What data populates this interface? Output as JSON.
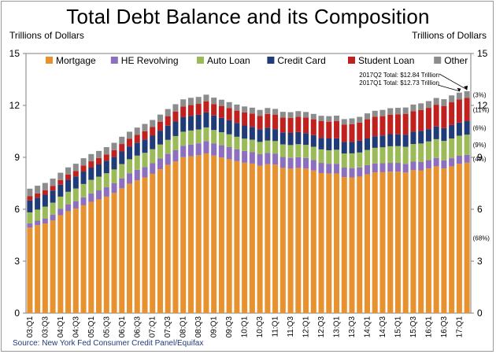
{
  "chart_data": {
    "type": "bar",
    "stacked": true,
    "title": "Total Debt Balance and its Composition",
    "ylabel_left": "Trillions of Dollars",
    "ylabel_right": "Trillions of Dollars",
    "source": "Source: New York Fed Consumer Credit Panel/Equifax",
    "ylim": [
      0,
      15
    ],
    "yticks": [
      "0",
      "3",
      "6",
      "9",
      "12",
      "15"
    ],
    "categories": [
      "03:Q1",
      "03:Q2",
      "03:Q3",
      "03:Q4",
      "04:Q1",
      "04:Q2",
      "04:Q3",
      "04:Q4",
      "05:Q1",
      "05:Q2",
      "05:Q3",
      "05:Q4",
      "06:Q1",
      "06:Q2",
      "06:Q3",
      "06:Q4",
      "07:Q1",
      "07:Q2",
      "07:Q3",
      "07:Q4",
      "08:Q1",
      "08:Q2",
      "08:Q3",
      "08:Q4",
      "09:Q1",
      "09:Q2",
      "09:Q3",
      "09:Q4",
      "10:Q1",
      "10:Q2",
      "10:Q3",
      "10:Q4",
      "11:Q1",
      "11:Q2",
      "11:Q3",
      "11:Q4",
      "12:Q1",
      "12:Q2",
      "12:Q3",
      "12:Q4",
      "13:Q1",
      "13:Q2",
      "13:Q3",
      "13:Q4",
      "14:Q1",
      "14:Q2",
      "14:Q3",
      "14:Q4",
      "15:Q1",
      "15:Q2",
      "15:Q3",
      "15:Q4",
      "16:Q1",
      "16:Q2",
      "16:Q3",
      "16:Q4",
      "17:Q1",
      "17:Q2"
    ],
    "xtick_labels": [
      "03:Q1",
      "03:Q3",
      "04:Q1",
      "04:Q3",
      "05:Q1",
      "05:Q3",
      "06:Q1",
      "06:Q3",
      "07:Q1",
      "07:Q3",
      "08:Q1",
      "08:Q3",
      "09:Q1",
      "09:Q3",
      "10:Q1",
      "10:Q3",
      "11:Q1",
      "11:Q3",
      "12:Q1",
      "12:Q3",
      "13:Q1",
      "13:Q3",
      "14:Q1",
      "14:Q3",
      "15:Q1",
      "15:Q3",
      "16:Q1",
      "16:Q3",
      "17:Q1"
    ],
    "series": [
      {
        "name": "Mortgage",
        "color": "#e8912f",
        "values": [
          4.94,
          5.08,
          5.18,
          5.35,
          5.66,
          5.89,
          6.04,
          6.23,
          6.42,
          6.57,
          6.73,
          6.94,
          7.21,
          7.48,
          7.68,
          7.84,
          8.05,
          8.31,
          8.57,
          8.76,
          9.01,
          9.06,
          9.12,
          9.23,
          9.1,
          8.99,
          8.89,
          8.78,
          8.69,
          8.64,
          8.52,
          8.6,
          8.58,
          8.39,
          8.35,
          8.39,
          8.35,
          8.24,
          8.09,
          8.06,
          8.07,
          7.86,
          7.84,
          7.89,
          8.02,
          8.13,
          8.14,
          8.17,
          8.17,
          8.12,
          8.26,
          8.25,
          8.36,
          8.48,
          8.36,
          8.48,
          8.63,
          8.69
        ]
      },
      {
        "name": "HE Revolving",
        "color": "#8c6fbe",
        "values": [
          0.24,
          0.26,
          0.29,
          0.33,
          0.37,
          0.4,
          0.43,
          0.46,
          0.5,
          0.52,
          0.54,
          0.56,
          0.58,
          0.59,
          0.6,
          0.6,
          0.61,
          0.62,
          0.63,
          0.65,
          0.66,
          0.68,
          0.69,
          0.71,
          0.71,
          0.71,
          0.7,
          0.69,
          0.68,
          0.67,
          0.66,
          0.66,
          0.64,
          0.63,
          0.62,
          0.62,
          0.61,
          0.6,
          0.59,
          0.57,
          0.56,
          0.55,
          0.54,
          0.53,
          0.53,
          0.52,
          0.52,
          0.51,
          0.51,
          0.5,
          0.49,
          0.49,
          0.49,
          0.48,
          0.47,
          0.47,
          0.46,
          0.45
        ]
      },
      {
        "name": "Auto Loan",
        "color": "#9bbb59",
        "values": [
          0.64,
          0.64,
          0.68,
          0.7,
          0.7,
          0.72,
          0.73,
          0.77,
          0.78,
          0.79,
          0.81,
          0.8,
          0.82,
          0.82,
          0.82,
          0.82,
          0.81,
          0.81,
          0.81,
          0.82,
          0.81,
          0.81,
          0.8,
          0.79,
          0.77,
          0.75,
          0.74,
          0.72,
          0.71,
          0.71,
          0.71,
          0.71,
          0.72,
          0.73,
          0.74,
          0.75,
          0.76,
          0.77,
          0.78,
          0.78,
          0.81,
          0.81,
          0.85,
          0.86,
          0.88,
          0.9,
          0.92,
          0.96,
          0.97,
          0.99,
          1.02,
          1.06,
          1.07,
          1.09,
          1.12,
          1.14,
          1.16,
          1.17
        ]
      },
      {
        "name": "Credit Card",
        "color": "#1f3c78",
        "values": [
          0.69,
          0.69,
          0.69,
          0.7,
          0.69,
          0.7,
          0.7,
          0.72,
          0.71,
          0.71,
          0.72,
          0.73,
          0.73,
          0.74,
          0.75,
          0.77,
          0.78,
          0.8,
          0.82,
          0.84,
          0.84,
          0.85,
          0.85,
          0.87,
          0.84,
          0.83,
          0.81,
          0.8,
          0.76,
          0.74,
          0.73,
          0.73,
          0.69,
          0.69,
          0.7,
          0.7,
          0.68,
          0.67,
          0.67,
          0.68,
          0.66,
          0.67,
          0.66,
          0.68,
          0.66,
          0.67,
          0.68,
          0.7,
          0.68,
          0.7,
          0.71,
          0.73,
          0.71,
          0.73,
          0.74,
          0.78,
          0.76,
          0.78
        ]
      },
      {
        "name": "Student Loan",
        "color": "#c0201e",
        "values": [
          0.24,
          0.25,
          0.25,
          0.26,
          0.27,
          0.3,
          0.31,
          0.35,
          0.36,
          0.37,
          0.37,
          0.39,
          0.43,
          0.44,
          0.45,
          0.48,
          0.5,
          0.52,
          0.55,
          0.58,
          0.61,
          0.62,
          0.63,
          0.64,
          0.66,
          0.69,
          0.7,
          0.71,
          0.76,
          0.77,
          0.78,
          0.81,
          0.84,
          0.86,
          0.87,
          0.89,
          0.9,
          0.92,
          0.96,
          0.97,
          0.99,
          1.0,
          1.03,
          1.05,
          1.11,
          1.12,
          1.12,
          1.13,
          1.16,
          1.19,
          1.19,
          1.2,
          1.23,
          1.26,
          1.28,
          1.31,
          1.34,
          1.34
        ]
      },
      {
        "name": "Other",
        "color": "#8c8c8c",
        "values": [
          0.44,
          0.44,
          0.43,
          0.43,
          0.42,
          0.41,
          0.42,
          0.42,
          0.42,
          0.41,
          0.42,
          0.42,
          0.42,
          0.41,
          0.42,
          0.42,
          0.41,
          0.41,
          0.41,
          0.42,
          0.42,
          0.42,
          0.4,
          0.38,
          0.37,
          0.36,
          0.35,
          0.35,
          0.34,
          0.34,
          0.34,
          0.34,
          0.33,
          0.33,
          0.33,
          0.32,
          0.32,
          0.31,
          0.31,
          0.32,
          0.32,
          0.32,
          0.33,
          0.33,
          0.34,
          0.35,
          0.36,
          0.37,
          0.37,
          0.38,
          0.38,
          0.39,
          0.39,
          0.39,
          0.39,
          0.4,
          0.39,
          0.39
        ]
      }
    ],
    "right_labels": [
      {
        "text": "(3%)",
        "series": "Other"
      },
      {
        "text": "(11%)",
        "series": "Student Loan"
      },
      {
        "text": "(6%)",
        "series": "Credit Card"
      },
      {
        "text": "(9%)",
        "series": "Auto Loan"
      },
      {
        "text": "(4%)",
        "series": "HE Revolving"
      },
      {
        "text": "(68%)",
        "series": "Mortgage"
      }
    ],
    "annotations": [
      {
        "text": "2017Q2 Total: $12.84 Trillion"
      },
      {
        "text": "2017Q1 Total: $12.73 Trillion"
      }
    ],
    "legend_position": "top",
    "grid": false
  }
}
